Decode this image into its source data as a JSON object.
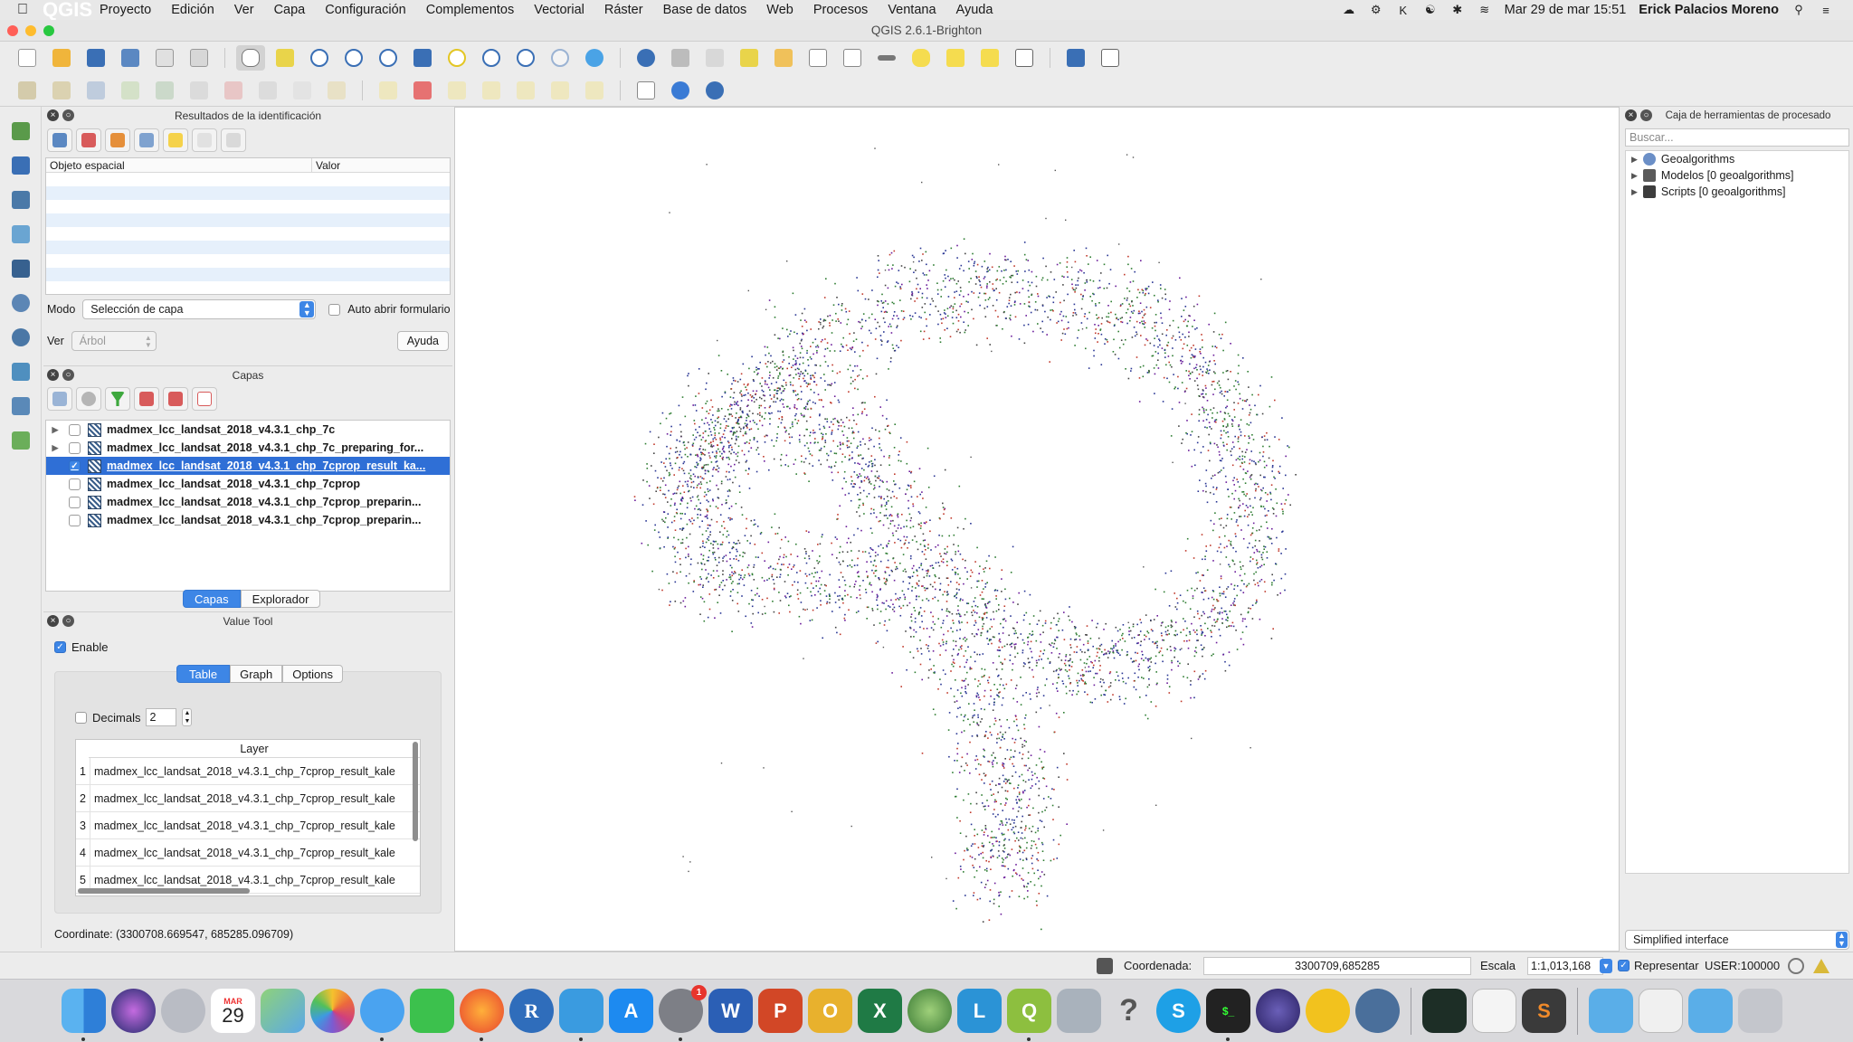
{
  "menubar": {
    "apple_icon": "apple-icon",
    "app_name": "QGIS",
    "items": [
      "Proyecto",
      "Edición",
      "Ver",
      "Capa",
      "Configuración",
      "Complementos",
      "Vectorial",
      "Ráster",
      "Base de datos",
      "Web",
      "Procesos",
      "Ventana",
      "Ayuda"
    ],
    "datetime": "Mar 29 de mar  15:51",
    "user": "Erick Palacios Moreno"
  },
  "window": {
    "title": "QGIS 2.6.1-Brighton"
  },
  "identify": {
    "title": "Resultados de la identificación",
    "col_feature": "Objeto espacial",
    "col_value": "Valor",
    "mode_label": "Modo",
    "mode_value": "Selección de capa",
    "auto_open_label": "Auto abrir formulario",
    "view_label": "Ver",
    "view_value": "Árbol",
    "help_label": "Ayuda"
  },
  "layers": {
    "title": "Capas",
    "items": [
      {
        "name": "madmex_lcc_landsat_2018_v4.3.1_chp_7c",
        "expandable": true,
        "checked": false,
        "selected": false
      },
      {
        "name": "madmex_lcc_landsat_2018_v4.3.1_chp_7c_preparing_for...",
        "expandable": true,
        "checked": false,
        "selected": false
      },
      {
        "name": "madmex_lcc_landsat_2018_v4.3.1_chp_7cprop_result_ka...",
        "expandable": false,
        "checked": true,
        "selected": true
      },
      {
        "name": "madmex_lcc_landsat_2018_v4.3.1_chp_7cprop",
        "expandable": false,
        "checked": false,
        "selected": false
      },
      {
        "name": "madmex_lcc_landsat_2018_v4.3.1_chp_7cprop_preparin...",
        "expandable": false,
        "checked": false,
        "selected": false
      },
      {
        "name": "madmex_lcc_landsat_2018_v4.3.1_chp_7cprop_preparin...",
        "expandable": false,
        "checked": false,
        "selected": false
      }
    ],
    "tab_layers": "Capas",
    "tab_browser": "Explorador"
  },
  "value_tool": {
    "title": "Value Tool",
    "enable_label": "Enable",
    "tabs": [
      "Table",
      "Graph",
      "Options"
    ],
    "decimals_label": "Decimals",
    "decimals_value": "2",
    "layer_header": "Layer",
    "rows": [
      {
        "n": "1",
        "layer": "madmex_lcc_landsat_2018_v4.3.1_chp_7cprop_result_kale"
      },
      {
        "n": "2",
        "layer": "madmex_lcc_landsat_2018_v4.3.1_chp_7cprop_result_kale"
      },
      {
        "n": "3",
        "layer": "madmex_lcc_landsat_2018_v4.3.1_chp_7cprop_result_kale"
      },
      {
        "n": "4",
        "layer": "madmex_lcc_landsat_2018_v4.3.1_chp_7cprop_result_kale"
      },
      {
        "n": "5",
        "layer": "madmex_lcc_landsat_2018_v4.3.1_chp_7cprop_result_kale"
      }
    ],
    "coordinate": "Coordinate: (3300708.669547, 685285.096709)"
  },
  "processing": {
    "title": "Caja de herramientas de procesado",
    "search_placeholder": "Buscar...",
    "tree": [
      "Geoalgorithms",
      "Modelos [0 geoalgorithms]",
      "Scripts [0 geoalgorithms]"
    ],
    "mode": "Simplified interface"
  },
  "statusbar": {
    "coord_label": "Coordenada:",
    "coord_value": "3300709,685285",
    "scale_label": "Escala",
    "scale_value": "1:1,013,168",
    "render_label": "Representar",
    "crs": "USER:100000"
  },
  "dock_apps": [
    "Finder",
    "Siri",
    "Launchpad",
    "Calendar",
    "Maps",
    "Photos",
    "Messages",
    "FaceTime",
    "Firefox",
    "R",
    "Docker",
    "App Store",
    "System Preferences",
    "Word",
    "PowerPoint",
    "Outlook",
    "Excel",
    "QGIS Globe",
    "L",
    "QGIS",
    "Database",
    "Help",
    "Skype",
    "Terminal",
    "Eclipse",
    "Cyberduck",
    "PostgreSQL",
    "Activity Monitor",
    "TextEdit",
    "Sublime Text",
    "Folder",
    "Preview",
    "Folder",
    "Trash"
  ],
  "calendar": {
    "month": "MAR",
    "day": "29"
  },
  "system_prefs_badge": "1",
  "colors": {
    "accent": "#3d86e6",
    "selection": "#2f6fd6",
    "map_bg": "#ffffff"
  }
}
